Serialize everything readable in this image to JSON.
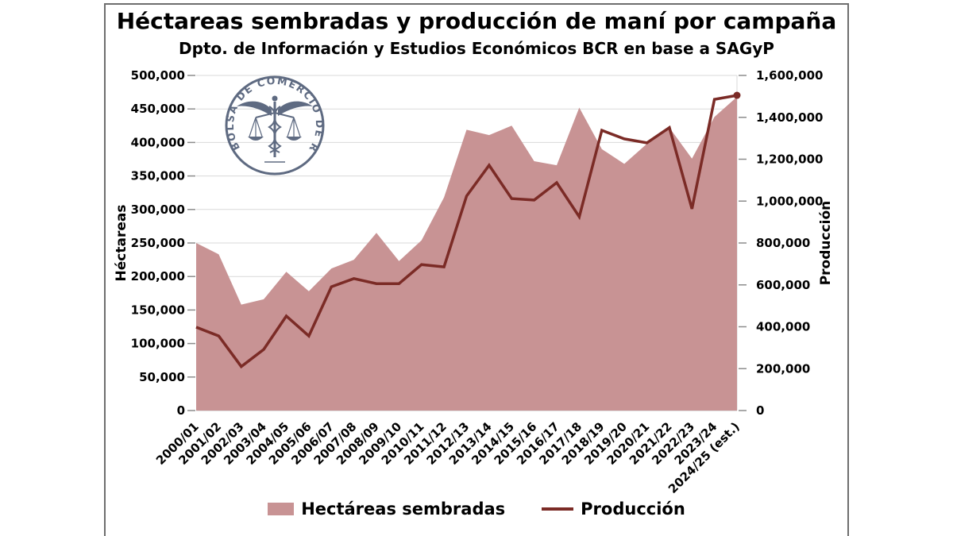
{
  "title": "Héctareas sembradas y producción de maní por campaña",
  "subtitle": "Dpto. de Información y Estudios Económicos BCR en base a SAGyP",
  "logo": {
    "text": "BOLSA DE COMERCIO DE ROSARIO"
  },
  "colors": {
    "area": "#c89394",
    "line": "#7b2b26",
    "grid": "#d9d9d9",
    "baseline": "#c0c0c0",
    "tick": "#8c8c8c",
    "frame": "#6e6e6e",
    "logo": "#4d5a74",
    "text": "#000000"
  },
  "chart_data": {
    "type": "combo (area + line, dual axis)",
    "categories": [
      "2000/01",
      "2001/02",
      "2002/03",
      "2003/04",
      "2004/05",
      "2005/06",
      "2006/07",
      "2007/08",
      "2008/09",
      "2009/10",
      "2010/11",
      "2011/12",
      "2012/13",
      "2013/14",
      "2014/15",
      "2015/16",
      "2016/17",
      "2017/18",
      "2018/19",
      "2019/20",
      "2020/21",
      "2021/22",
      "2022/23",
      "2023/24",
      "2024/25 (est.)"
    ],
    "series": [
      {
        "name": "Hectáreas sembradas",
        "type": "area",
        "axis": "left",
        "values": [
          250000,
          233000,
          158000,
          166000,
          207000,
          178000,
          212000,
          225000,
          265000,
          223000,
          254000,
          318000,
          419000,
          411000,
          425000,
          372000,
          366000,
          452000,
          390000,
          368000,
          398000,
          422000,
          376000,
          438000,
          468000
        ]
      },
      {
        "name": "Producción",
        "type": "line",
        "axis": "right",
        "values": [
          398000,
          356000,
          210000,
          292000,
          451000,
          356000,
          591000,
          630000,
          606000,
          606000,
          697000,
          686000,
          1024000,
          1171000,
          1012000,
          1005000,
          1088000,
          925000,
          1338000,
          1297000,
          1278000,
          1351000,
          963000,
          1486000,
          1505000
        ]
      }
    ],
    "left_axis": {
      "label": "Héctareas",
      "min": 0,
      "max": 500000,
      "step": 50000,
      "tick_labels": [
        "0",
        "50,000",
        "100,000",
        "150,000",
        "200,000",
        "250,000",
        "300,000",
        "350,000",
        "400,000",
        "450,000",
        "500,000"
      ]
    },
    "right_axis": {
      "label": "Producción",
      "min": 0,
      "max": 1600000,
      "step": 200000,
      "tick_labels": [
        "0",
        "200,000",
        "400,000",
        "600,000",
        "800,000",
        "1,000,000",
        "1,200,000",
        "1,400,000",
        "1,600,000"
      ]
    },
    "grid": true,
    "legend_position": "bottom",
    "last_point_marker": true
  }
}
